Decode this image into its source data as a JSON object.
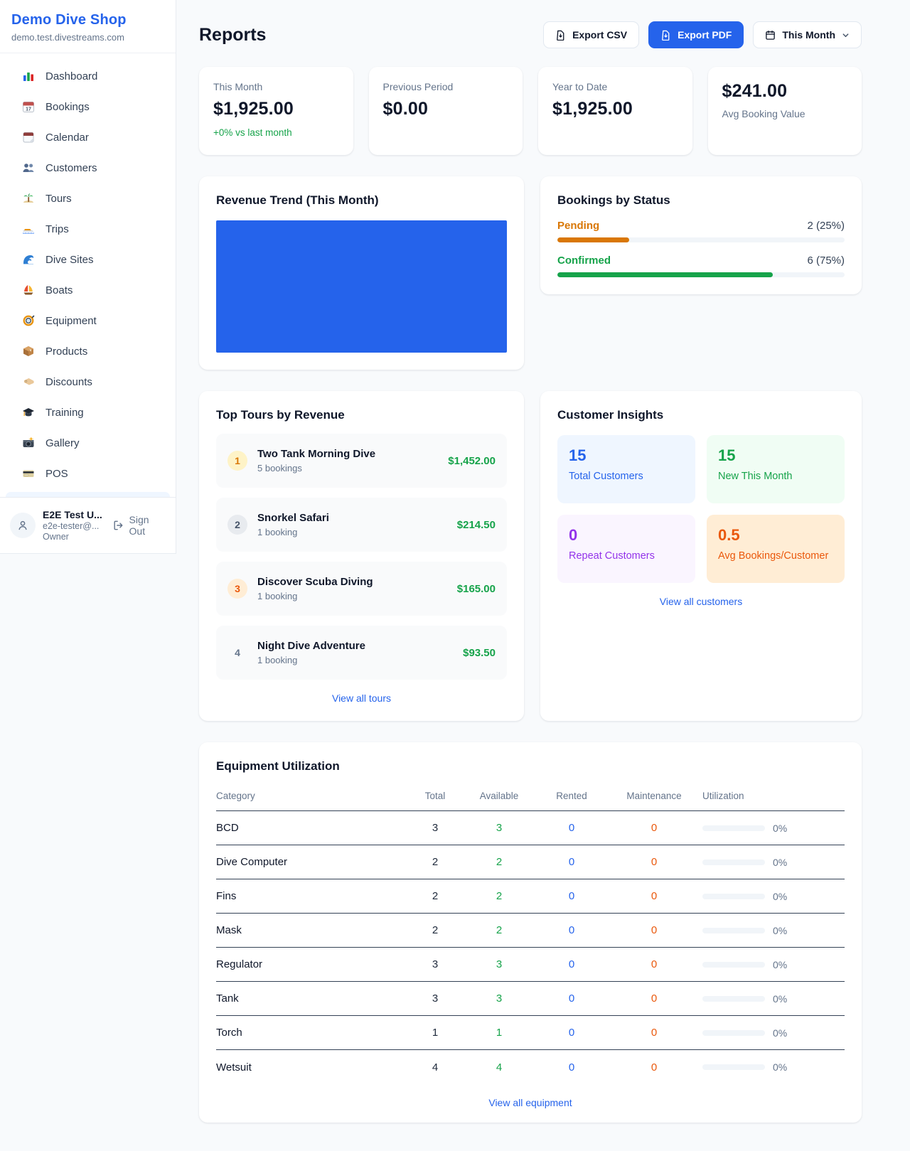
{
  "sidebar": {
    "brand": {
      "name": "Demo Dive Shop",
      "domain": "demo.test.divestreams.com"
    },
    "nav": [
      {
        "icon": "bar-chart-icon",
        "label": "Dashboard"
      },
      {
        "icon": "bookings-calendar-icon",
        "label": "Bookings"
      },
      {
        "icon": "calendar-icon",
        "label": "Calendar"
      },
      {
        "icon": "customers-icon",
        "label": "Customers"
      },
      {
        "icon": "island-icon",
        "label": "Tours"
      },
      {
        "icon": "speedboat-icon",
        "label": "Trips"
      },
      {
        "icon": "wave-icon",
        "label": "Dive Sites"
      },
      {
        "icon": "sailboat-icon",
        "label": "Boats"
      },
      {
        "icon": "dive-mask-icon",
        "label": "Equipment"
      },
      {
        "icon": "package-icon",
        "label": "Products"
      },
      {
        "icon": "tag-icon",
        "label": "Discounts"
      },
      {
        "icon": "grad-cap-icon",
        "label": "Training"
      },
      {
        "icon": "camera-icon",
        "label": "Gallery"
      },
      {
        "icon": "credit-card-icon",
        "label": "POS"
      }
    ],
    "user": {
      "name": "E2E Test U...",
      "email": "e2e-tester@...",
      "role": "Owner",
      "sign_out": "Sign Out"
    }
  },
  "header": {
    "title": "Reports",
    "export_csv": "Export CSV",
    "export_pdf": "Export PDF",
    "period": "This Month"
  },
  "stats": [
    {
      "label": "This Month",
      "value": "$1,925.00",
      "delta": "+0% vs last month",
      "delta_color": "#16a34a"
    },
    {
      "label": "Previous Period",
      "value": "$0.00"
    },
    {
      "label": "Year to Date",
      "value": "$1,925.00"
    },
    {
      "label": "Avg Booking Value",
      "value": "$241.00"
    }
  ],
  "revenue_trend": {
    "title": "Revenue Trend (This Month)",
    "fill_color": "#2563eb"
  },
  "chart_data": {
    "type": "bar",
    "title": "Revenue Trend (This Month)",
    "categories": [
      "This Month"
    ],
    "series": [
      {
        "name": "Revenue",
        "values": [
          1925
        ]
      }
    ],
    "note": "single solid blue bar filling entire plot area; no axes, ticks or labels visible"
  },
  "bookings_by_status": {
    "title": "Bookings by Status",
    "rows": [
      {
        "label": "Pending",
        "count": "2 (25%)",
        "pct": 25,
        "color": "#d97706"
      },
      {
        "label": "Confirmed",
        "count": "6 (75%)",
        "pct": 75,
        "color": "#16a34a"
      }
    ]
  },
  "top_tours": {
    "title": "Top Tours by Revenue",
    "rows": [
      {
        "rank": "1",
        "name": "Two Tank Morning Dive",
        "bookings": "5 bookings",
        "amount": "$1,452.00",
        "rank_bg": "#fef3c7",
        "rank_color": "#d97706"
      },
      {
        "rank": "2",
        "name": "Snorkel Safari",
        "bookings": "1 booking",
        "amount": "$214.50",
        "rank_bg": "#e8ebef",
        "rank_color": "#475569"
      },
      {
        "rank": "3",
        "name": "Discover Scuba Diving",
        "bookings": "1 booking",
        "amount": "$165.00",
        "rank_bg": "#ffedd5",
        "rank_color": "#ea580c"
      },
      {
        "rank": "4",
        "name": "Night Dive Adventure",
        "bookings": "1 booking",
        "amount": "$93.50",
        "rank_bg": "transparent",
        "rank_color": "#64748b"
      }
    ],
    "link": "View all tours"
  },
  "customer_insights": {
    "title": "Customer Insights",
    "tiles": [
      {
        "value": "15",
        "label": "Total Customers",
        "color": "#2563eb",
        "bg": "#eff6ff"
      },
      {
        "value": "15",
        "label": "New This Month",
        "color": "#16a34a",
        "bg": "#f0fdf4"
      },
      {
        "value": "0",
        "label": "Repeat Customers",
        "color": "#9333ea",
        "bg": "#faf5ff"
      },
      {
        "value": "0.5",
        "label": "Avg Bookings/Customer",
        "color": "#ea580c",
        "bg": "#ffedd5"
      }
    ],
    "link": "View all customers"
  },
  "equipment": {
    "title": "Equipment Utilization",
    "columns": [
      "Category",
      "Total",
      "Available",
      "Rented",
      "Maintenance",
      "Utilization"
    ],
    "rows": [
      {
        "category": "BCD",
        "total": "3",
        "available": "3",
        "rented": "0",
        "maintenance": "0",
        "utilization": "0%",
        "utilization_pct": 0
      },
      {
        "category": "Dive Computer",
        "total": "2",
        "available": "2",
        "rented": "0",
        "maintenance": "0",
        "utilization": "0%",
        "utilization_pct": 0
      },
      {
        "category": "Fins",
        "total": "2",
        "available": "2",
        "rented": "0",
        "maintenance": "0",
        "utilization": "0%",
        "utilization_pct": 0
      },
      {
        "category": "Mask",
        "total": "2",
        "available": "2",
        "rented": "0",
        "maintenance": "0",
        "utilization": "0%",
        "utilization_pct": 0
      },
      {
        "category": "Regulator",
        "total": "3",
        "available": "3",
        "rented": "0",
        "maintenance": "0",
        "utilization": "0%",
        "utilization_pct": 0
      },
      {
        "category": "Tank",
        "total": "3",
        "available": "3",
        "rented": "0",
        "maintenance": "0",
        "utilization": "0%",
        "utilization_pct": 0
      },
      {
        "category": "Torch",
        "total": "1",
        "available": "1",
        "rented": "0",
        "maintenance": "0",
        "utilization": "0%",
        "utilization_pct": 0
      },
      {
        "category": "Wetsuit",
        "total": "4",
        "available": "4",
        "rented": "0",
        "maintenance": "0",
        "utilization": "0%",
        "utilization_pct": 0
      }
    ],
    "link": "View all equipment"
  }
}
